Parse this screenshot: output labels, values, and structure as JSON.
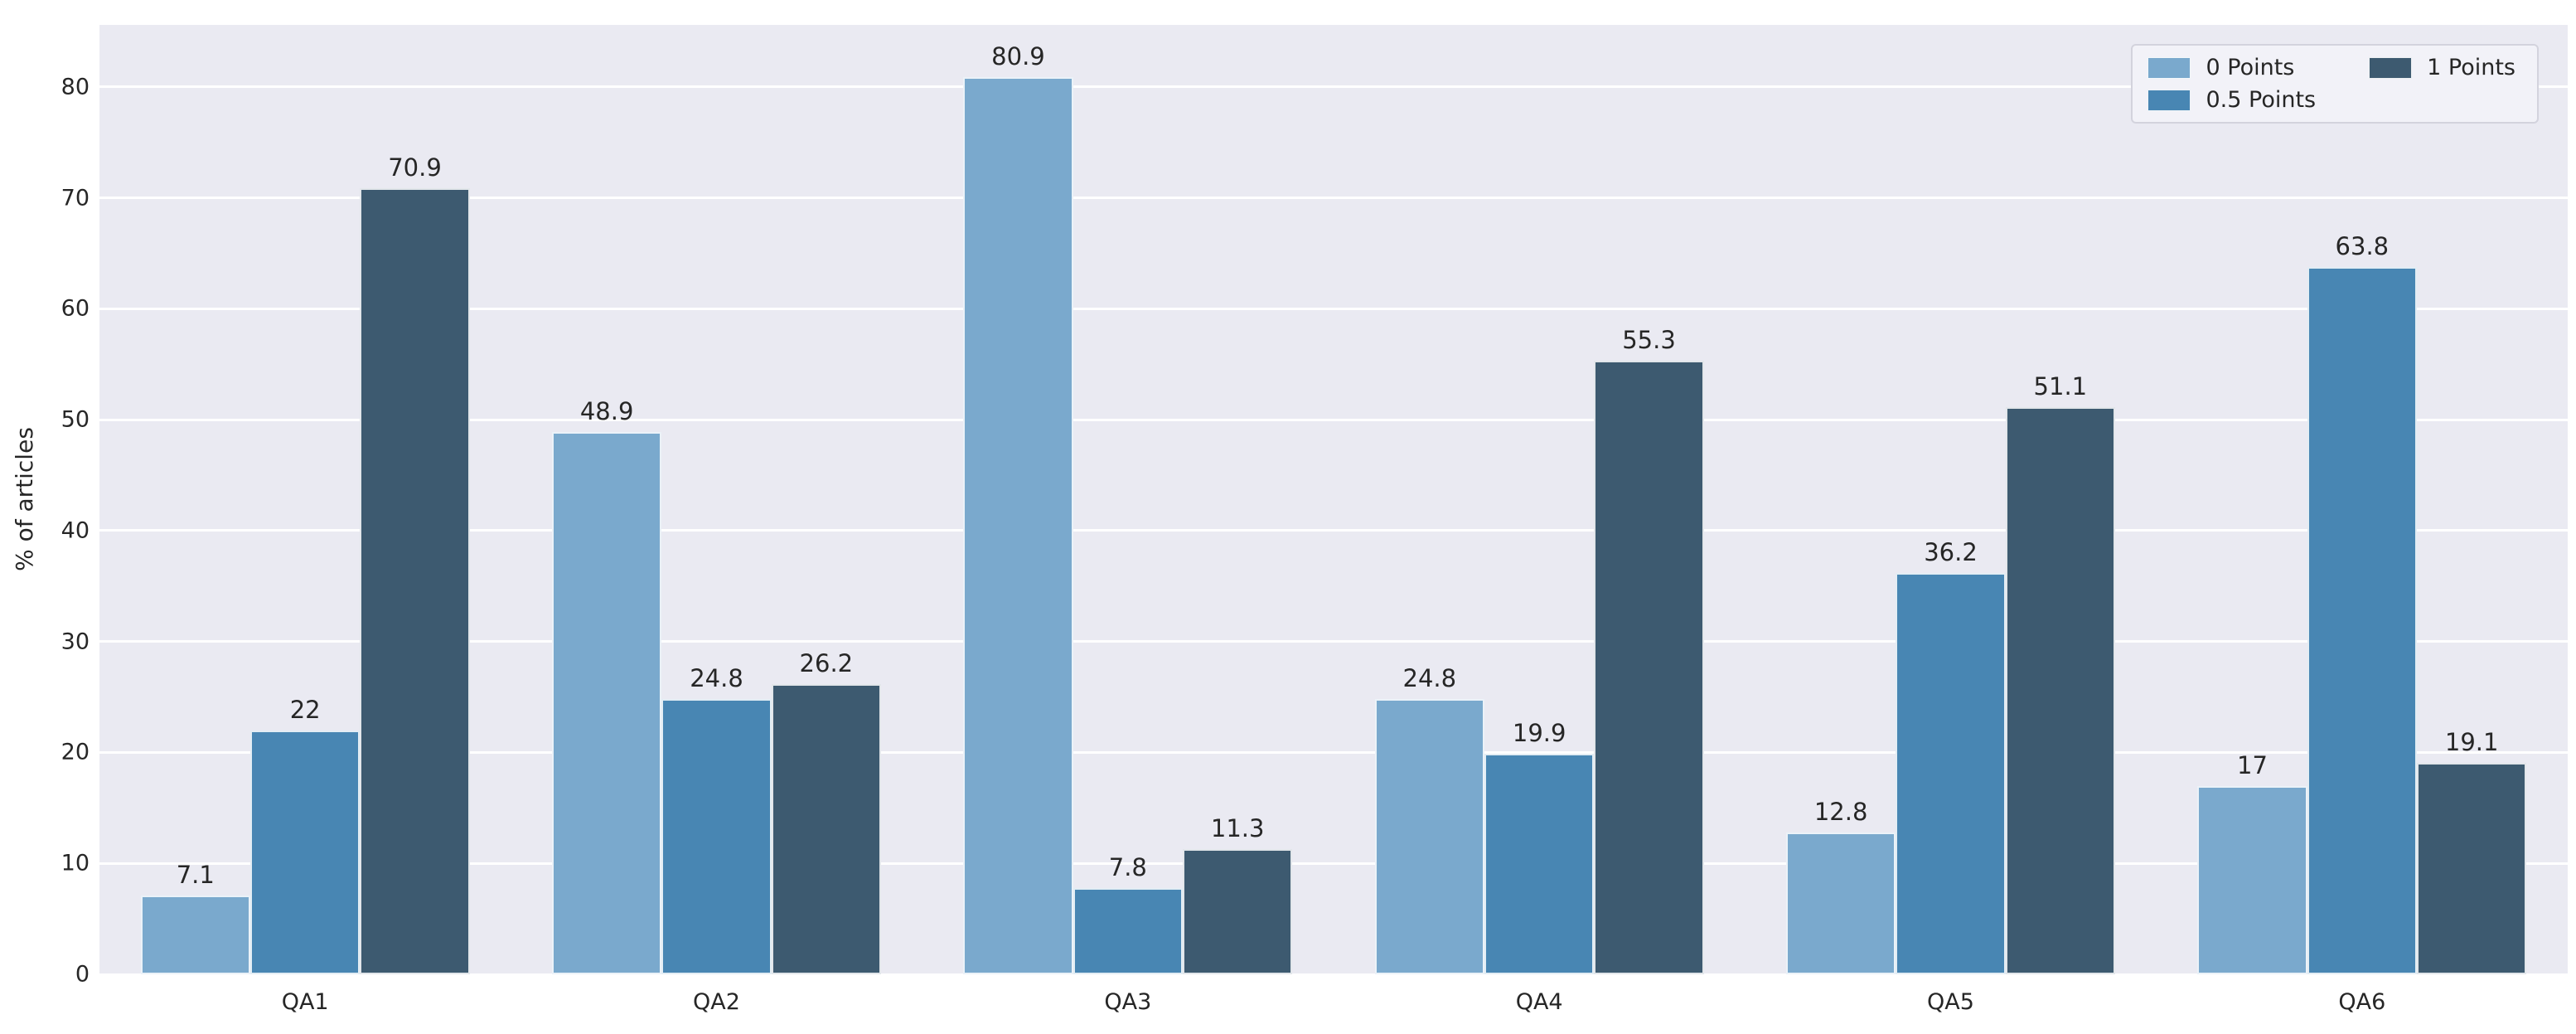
{
  "chart_data": {
    "type": "bar",
    "title": "",
    "xlabel": "",
    "ylabel": "% of articles",
    "categories": [
      "QA1",
      "QA2",
      "QA3",
      "QA4",
      "QA5",
      "QA6"
    ],
    "series": [
      {
        "name": "0 Points",
        "color": "#7AA9CD",
        "values": [
          7.1,
          48.9,
          80.9,
          24.8,
          12.8,
          17
        ],
        "labels": [
          "7.1",
          "48.9",
          "80.9",
          "24.8",
          "12.8",
          "17"
        ]
      },
      {
        "name": "0.5 Points",
        "color": "#4886B3",
        "values": [
          22,
          24.8,
          7.8,
          19.9,
          36.2,
          63.8
        ],
        "labels": [
          "22",
          "24.8",
          "7.8",
          "19.9",
          "36.2",
          "63.8"
        ]
      },
      {
        "name": "1 Points",
        "color": "#3D5A70",
        "values": [
          70.9,
          26.2,
          11.3,
          55.3,
          51.1,
          19.1
        ],
        "labels": [
          "70.9",
          "26.2",
          "11.3",
          "55.3",
          "51.1",
          "19.1"
        ]
      }
    ],
    "y_ticks": [
      0,
      10,
      20,
      30,
      40,
      50,
      60,
      70,
      80
    ],
    "ylim": [
      0,
      85.6
    ],
    "grid": "horizontal",
    "group_width_fraction": 0.8,
    "legend": {
      "position": "upper-right",
      "labels": [
        "0 Points",
        "0.5 Points",
        "1 Points"
      ],
      "columns": 2,
      "fill_order": "column-major"
    },
    "colors": {
      "plot_background": "#EAEAF2",
      "gridline": "#FFFFFF",
      "text": "#262626",
      "legend_background": "#F2F2F8",
      "legend_border": "#D3D3DD",
      "figure_background": "#FFFFFF"
    }
  }
}
